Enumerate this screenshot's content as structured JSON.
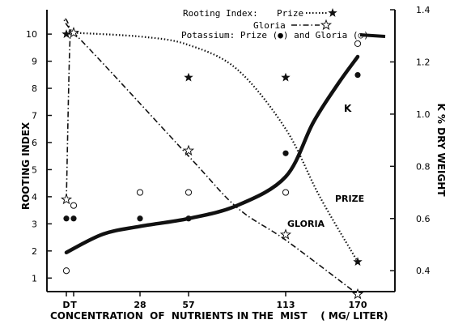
{
  "chart_data": {
    "type": "line",
    "xlabel": "CONCENTRATION  OF  NUTRIENTS IN THE  MIST    ( MG/ LITER)",
    "ylabel_left": "ROOTING  INDEX",
    "ylabel_right": "K  %  DRY WEIGHT",
    "x_tick_labels": [
      {
        "x": 0,
        "label": "D"
      },
      {
        "x": 3,
        "label": "T"
      },
      {
        "x": 28,
        "label": "28"
      },
      {
        "x": 57,
        "label": "57"
      },
      {
        "x": 113,
        "label": "113"
      },
      {
        "x": 170,
        "label": "170"
      }
    ],
    "ylim_left": [
      0.5,
      10.9
    ],
    "yticks_left": [
      1,
      2,
      3,
      4,
      5,
      6,
      7,
      8,
      9,
      10
    ],
    "ylim_right": [
      0.32,
      1.4
    ],
    "yticks_right": [
      0.4,
      0.6,
      0.8,
      1.0,
      1.2,
      1.4
    ],
    "yticks_right_labels": [
      "0.4",
      "0.6",
      "0.8",
      "1.0",
      "1.2",
      "1.4"
    ],
    "legend": {
      "rooting_title": "Rooting Index:",
      "prize": "Prize",
      "gloria": "Gloria",
      "potassium": "Potassium: Prize (●) and Gloria (○)"
    },
    "annotations": {
      "k": "K",
      "prize": "PRIZE",
      "gloria": "GLORIA"
    },
    "series": [
      {
        "name": "Prize",
        "axis": "left",
        "style": "dotted",
        "marker": "filled-star",
        "points": [
          [
            0,
            10.0
          ],
          [
            3,
            10.05
          ],
          [
            57,
            8.4
          ],
          [
            113,
            8.4
          ],
          [
            170,
            1.6
          ]
        ],
        "curve": [
          [
            3,
            10.05
          ],
          [
            30,
            9.9
          ],
          [
            57,
            9.6
          ],
          [
            85,
            8.7
          ],
          [
            113,
            6.5
          ],
          [
            140,
            4.0
          ],
          [
            170,
            1.6
          ]
        ]
      },
      {
        "name": "Gloria",
        "axis": "left",
        "style": "dash-dot",
        "marker": "open-star",
        "points": [
          [
            0,
            3.9
          ],
          [
            3,
            10.05
          ],
          [
            57,
            5.7
          ],
          [
            113,
            2.6
          ],
          [
            170,
            0.4
          ]
        ],
        "curve": [
          [
            0,
            3.9
          ],
          [
            1.5,
            9.8
          ],
          [
            3,
            10.05
          ],
          [
            57,
            5.5
          ],
          [
            85,
            3.6
          ],
          [
            113,
            2.4
          ],
          [
            170,
            0.4
          ]
        ]
      },
      {
        "name": "Potassium Prize",
        "axis": "right",
        "style": "none",
        "marker": "filled-circle",
        "points": [
          [
            0,
            0.6
          ],
          [
            3,
            0.6
          ],
          [
            28,
            0.6
          ],
          [
            57,
            0.6
          ],
          [
            113,
            0.85
          ],
          [
            170,
            1.15
          ]
        ]
      },
      {
        "name": "Potassium Gloria",
        "axis": "right",
        "style": "none",
        "marker": "open-circle",
        "points": [
          [
            0,
            0.4
          ],
          [
            3,
            0.65
          ],
          [
            28,
            0.7
          ],
          [
            57,
            0.7
          ],
          [
            113,
            0.7
          ],
          [
            170,
            1.27
          ]
        ]
      },
      {
        "name": "K",
        "axis": "right",
        "style": "solid-thick",
        "marker": "none",
        "curve": [
          [
            0,
            0.47
          ],
          [
            14,
            0.54
          ],
          [
            28,
            0.57
          ],
          [
            57,
            0.6
          ],
          [
            85,
            0.65
          ],
          [
            113,
            0.76
          ],
          [
            135,
            0.97
          ],
          [
            155,
            1.12
          ],
          [
            170,
            1.22
          ]
        ]
      }
    ]
  }
}
